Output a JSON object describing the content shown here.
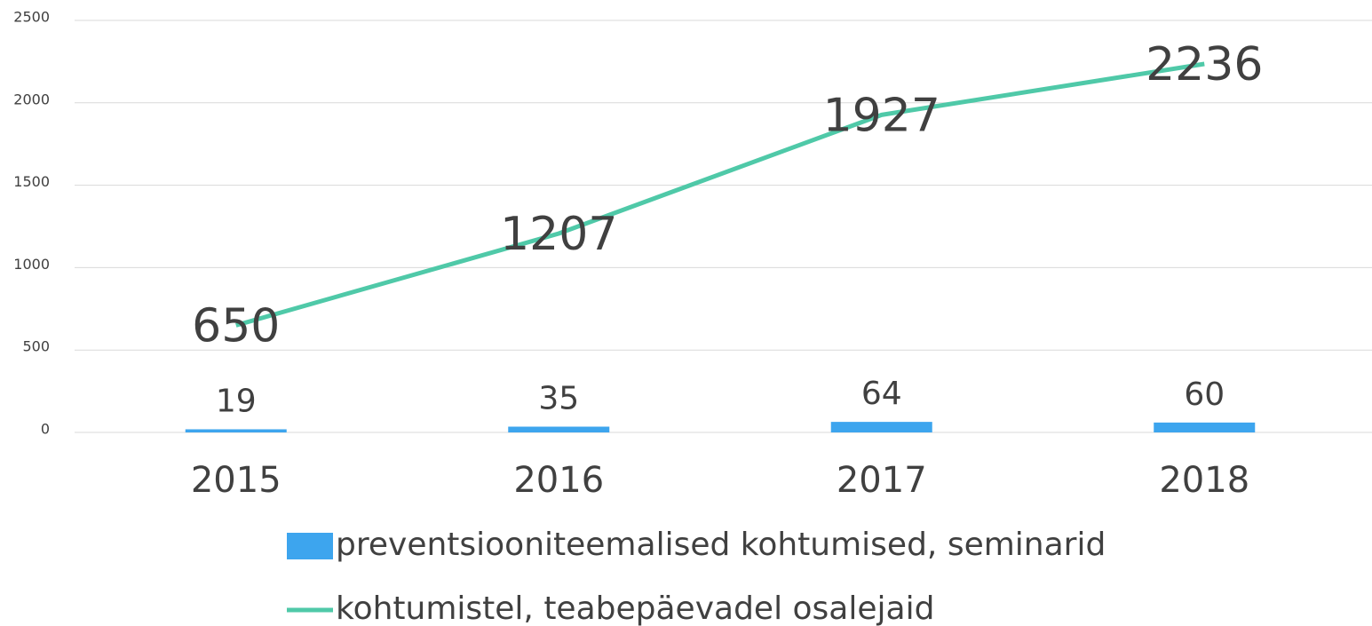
{
  "chart_data": {
    "type": "bar",
    "categories": [
      "2015",
      "2016",
      "2017",
      "2018"
    ],
    "series": [
      {
        "name": "preventsiooniteemalised kohtumised, seminarid",
        "type": "bar",
        "color": "#3da5ee",
        "values": [
          19,
          35,
          64,
          60
        ]
      },
      {
        "name": "kohtumistel, teabepäevadel osalejaid",
        "type": "line",
        "color": "#4fc9a8",
        "values": [
          650,
          1207,
          1927,
          2236
        ]
      }
    ],
    "ylim": [
      0,
      2500
    ],
    "yticks": [
      0,
      500,
      1000,
      1500,
      2000,
      2500
    ],
    "grid": true,
    "legend": "bottom"
  }
}
